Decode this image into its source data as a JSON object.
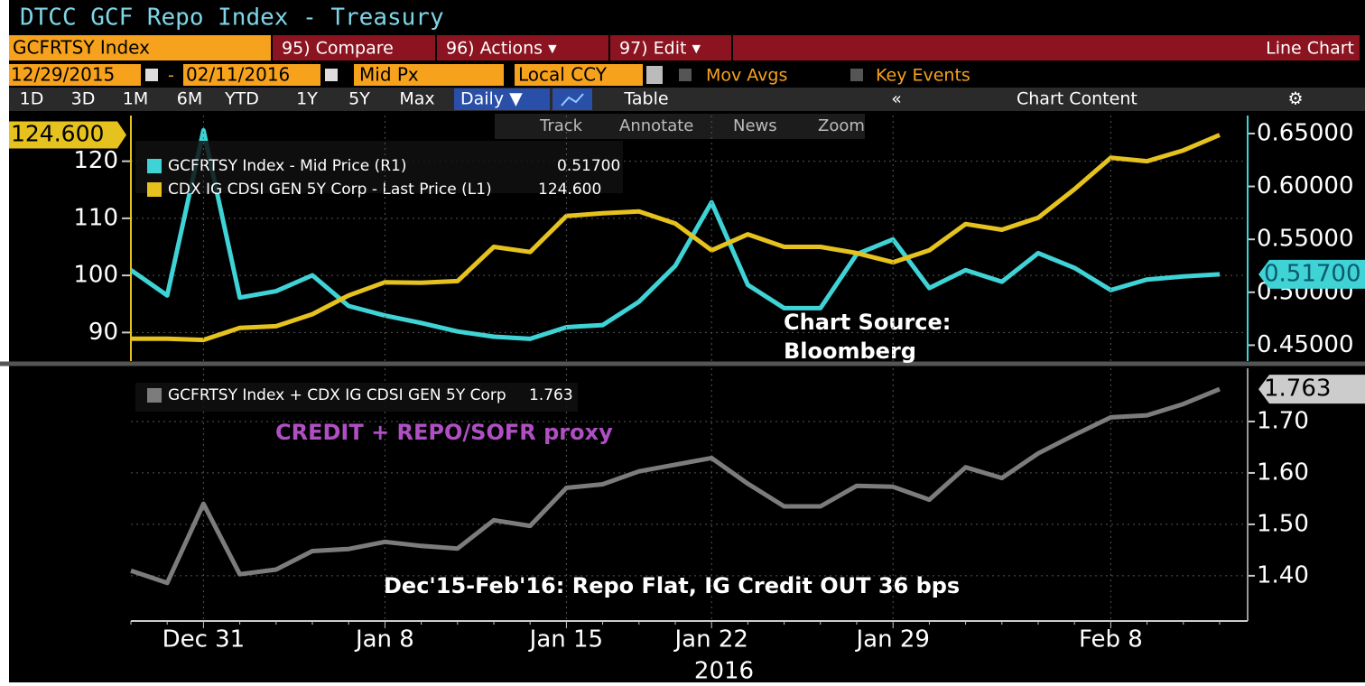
{
  "header": {
    "title": "DTCC GCF Repo Index - Treasury",
    "ticker": "GCFRTSY Index",
    "compare": "95) Compare",
    "actions": "96) Actions ▾",
    "edit": "97) Edit ▾",
    "chart_type_label": "Line Chart"
  },
  "controls": {
    "start_date": "12/29/2015",
    "dash": "-",
    "end_date": "02/11/2016",
    "field": "Mid Px",
    "currency": "Local CCY",
    "mov_avgs": "Mov Avgs",
    "key_events": "Key Events"
  },
  "periods": [
    "1D",
    "3D",
    "1M",
    "6M",
    "YTD",
    "1Y",
    "5Y",
    "Max"
  ],
  "frequency": "Daily ▼",
  "table": "Table",
  "collapse": "«",
  "chart_content": "Chart Content",
  "tools": [
    "Track",
    "Annotate",
    "News",
    "Zoom"
  ],
  "chart_data": [
    {
      "type": "line",
      "ylim": [
        85,
        128
      ],
      "yticks": [
        90,
        100,
        110,
        120
      ],
      "y2lim": [
        0.435,
        0.667
      ],
      "y2ticks": [
        {
          "value": 0.45,
          "label": "0.45000"
        },
        {
          "value": 0.5,
          "label": "0.50000"
        },
        {
          "value": 0.55,
          "label": "0.55000"
        },
        {
          "value": 0.6,
          "label": "0.60000"
        },
        {
          "value": 0.65,
          "label": "0.65000"
        }
      ],
      "grid": true,
      "series": [
        {
          "name": "GCFRTSY Index - Mid Price (R1)",
          "color": "#3fd3d6",
          "axis": "y2",
          "values": [
            0.521,
            0.497,
            0.653,
            0.495,
            0.501,
            0.516,
            0.487,
            0.478,
            0.471,
            0.463,
            0.458,
            0.456,
            0.467,
            0.469,
            0.491,
            0.525,
            0.585,
            0.507,
            0.485,
            0.485,
            0.536,
            0.55,
            0.504,
            0.521,
            0.51,
            0.537,
            0.523,
            0.502,
            0.512,
            0.515,
            0.517
          ],
          "value_labels": [
            null,
            null,
            null,
            null,
            null,
            null,
            null,
            null,
            null,
            null,
            null,
            null,
            null,
            null,
            null,
            null,
            null,
            null,
            null,
            null,
            null,
            null,
            null,
            null,
            null,
            null,
            null,
            null,
            null,
            null,
            "0.51700"
          ]
        },
        {
          "name": "CDX IG CDSI GEN 5Y Corp - Last Price (L1)",
          "color": "#e6c21e",
          "values": [
            88.9,
            88.9,
            88.7,
            90.8,
            91.1,
            93.2,
            96.5,
            98.8,
            98.7,
            99.0,
            105.0,
            104.1,
            110.4,
            110.9,
            111.2,
            109.1,
            104.4,
            107.2,
            105.0,
            105.0,
            103.9,
            102.3,
            104.4,
            109.0,
            108.0,
            110.1,
            115.1,
            120.6,
            120.0,
            121.9,
            124.6
          ],
          "value_labels": [
            null,
            null,
            null,
            null,
            null,
            null,
            null,
            null,
            null,
            null,
            null,
            null,
            null,
            null,
            null,
            null,
            null,
            null,
            null,
            null,
            null,
            null,
            null,
            null,
            null,
            null,
            null,
            null,
            null,
            null,
            "124.600"
          ]
        }
      ],
      "annotations": [
        "Chart Source:",
        "Bloomberg"
      ]
    },
    {
      "type": "line",
      "categories": [
        null,
        null,
        "Dec 31",
        null,
        null,
        null,
        null,
        "Jan 8",
        null,
        null,
        null,
        null,
        "Jan 15",
        null,
        null,
        null,
        "Jan 22",
        null,
        null,
        null,
        null,
        "Jan 29",
        null,
        null,
        null,
        null,
        null,
        "Feb 8",
        null,
        null,
        null
      ],
      "x_axis_label": "2016",
      "ylim": [
        1.312,
        1.8035
      ],
      "yticks": [
        {
          "value": 1.4,
          "label": "1.40"
        },
        {
          "value": 1.5,
          "label": "1.50"
        },
        {
          "value": 1.6,
          "label": "1.60"
        },
        {
          "value": 1.7,
          "label": "1.70"
        }
      ],
      "grid": true,
      "series": [
        {
          "name": "GCFRTSY Index + CDX IG CDSI GEN 5Y Corp",
          "color": "#7c7c7c",
          "values": [
            1.41,
            1.386,
            1.54,
            1.403,
            1.412,
            1.448,
            1.452,
            1.466,
            1.458,
            1.453,
            1.508,
            1.497,
            1.571,
            1.578,
            1.603,
            1.616,
            1.629,
            1.579,
            1.535,
            1.535,
            1.575,
            1.573,
            1.548,
            1.611,
            1.59,
            1.638,
            1.674,
            1.708,
            1.712,
            1.734,
            1.763
          ]
        }
      ],
      "annotations": [
        "CREDIT + REPO/SOFR proxy",
        "Dec'15-Feb'16: Repo Flat, IG Credit OUT 36 bps"
      ]
    }
  ]
}
